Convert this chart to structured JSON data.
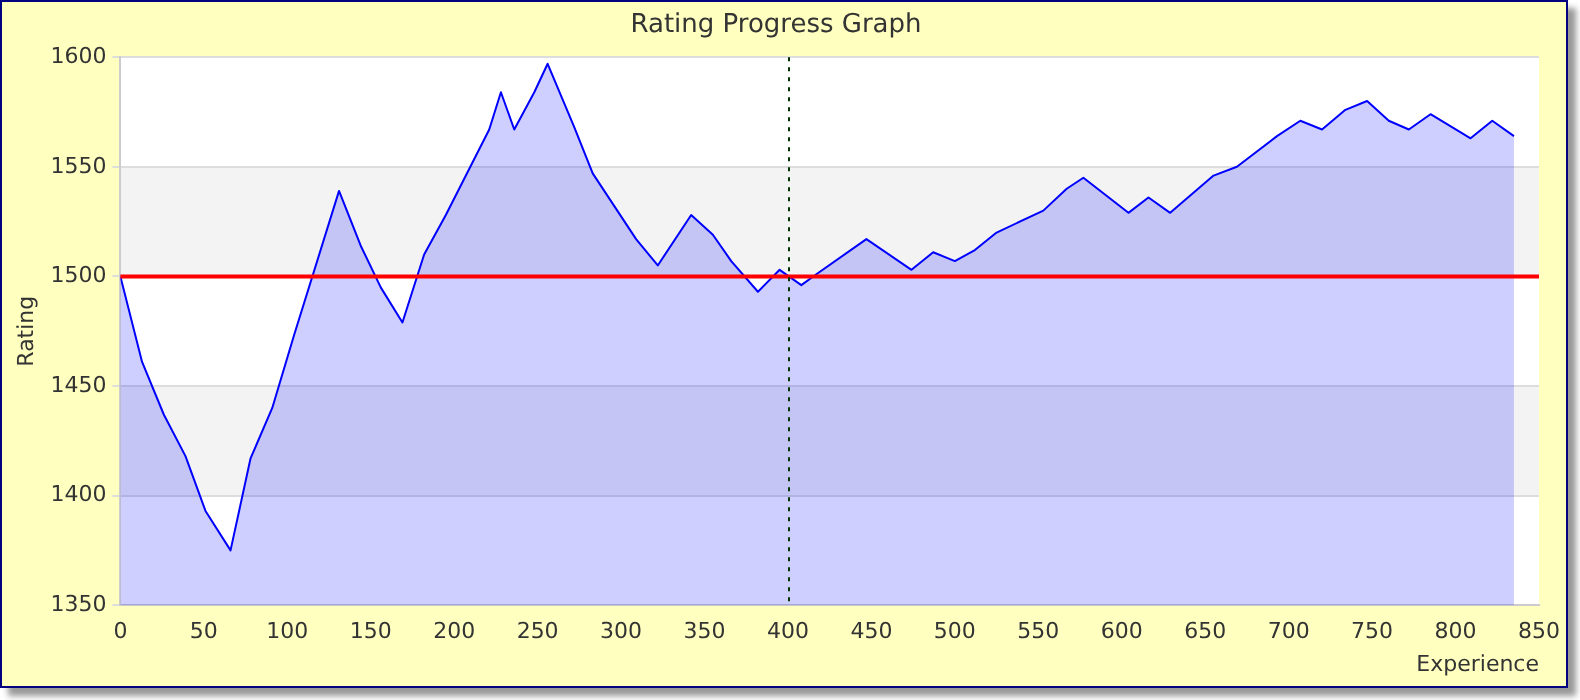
{
  "chart_data": {
    "type": "area",
    "title": "Rating Progress Graph",
    "xlabel": "Experience",
    "ylabel": "Rating",
    "x": [
      0,
      13,
      26,
      39,
      51,
      66,
      78,
      91,
      104,
      131,
      144,
      156,
      169,
      182,
      195,
      221,
      228,
      236,
      248,
      256,
      272,
      283,
      309,
      322,
      342,
      355,
      366,
      382,
      395,
      408,
      417,
      447,
      474,
      487,
      500,
      512,
      525,
      553,
      567,
      577,
      604,
      616,
      629,
      655,
      669,
      693,
      707,
      720,
      734,
      747,
      760,
      772,
      785,
      809,
      822,
      835
    ],
    "series": [
      {
        "color": "#0000ff",
        "values": [
          1500,
          1461,
          1437,
          1418,
          1393,
          1375,
          1417,
          1440,
          1473,
          1539,
          1514,
          1495,
          1479,
          1510,
          1528,
          1567,
          1584,
          1567,
          1584,
          1597,
          1568,
          1547,
          1517,
          1505,
          1528,
          1519,
          1507,
          1493,
          1503,
          1496,
          1501,
          1517,
          1503,
          1511,
          1507,
          1512,
          1520,
          1530,
          1540,
          1545,
          1529,
          1536,
          1529,
          1546,
          1550,
          1564,
          1571,
          1567,
          1576,
          1580,
          1571,
          1567,
          1574,
          1563,
          1571,
          1564
        ]
      }
    ],
    "xlim": [
      0,
      850
    ],
    "xticks": [
      0,
      50,
      100,
      150,
      200,
      250,
      300,
      350,
      400,
      450,
      500,
      550,
      600,
      650,
      700,
      750,
      800,
      850
    ],
    "ylim": [
      1350,
      1600
    ],
    "yticks": [
      1350,
      1400,
      1450,
      1500,
      1550,
      1600
    ],
    "grid": "y",
    "legend": false,
    "ref_lines": [
      {
        "axis": "y",
        "value": 1500,
        "color": "#ff0000",
        "line_style": "solid"
      },
      {
        "axis": "x",
        "value": 400,
        "color": "#003300",
        "line_style": "dotted"
      }
    ]
  }
}
